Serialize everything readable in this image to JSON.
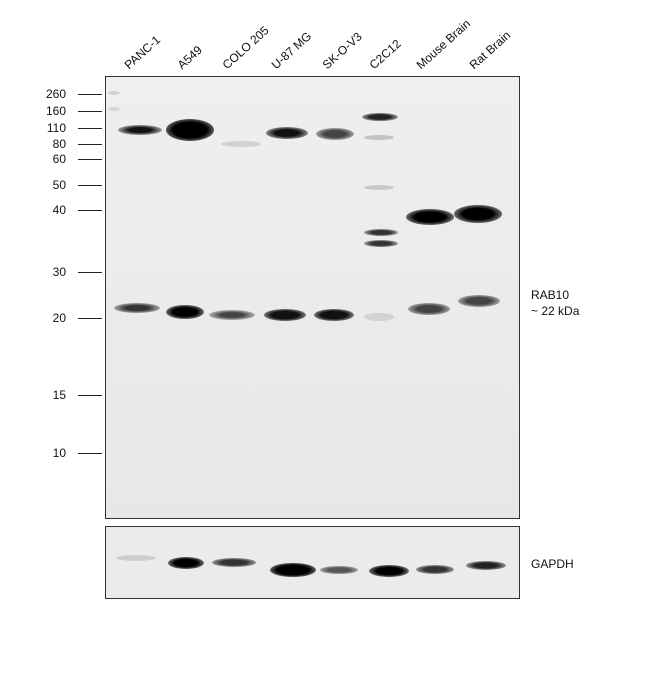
{
  "lanes": [
    "PANC-1",
    "A549",
    "COLO 205",
    "U-87 MG",
    "SK-O-V3",
    "C2C12",
    "Mouse Brain",
    "Rat Brain"
  ],
  "markers": [
    "260",
    "160",
    "110",
    "80",
    "60",
    "50",
    "40",
    "30",
    "20",
    "15",
    "10"
  ],
  "target": {
    "name": "RAB10",
    "size": "~ 22 kDa"
  },
  "loading_control": "GAPDH"
}
